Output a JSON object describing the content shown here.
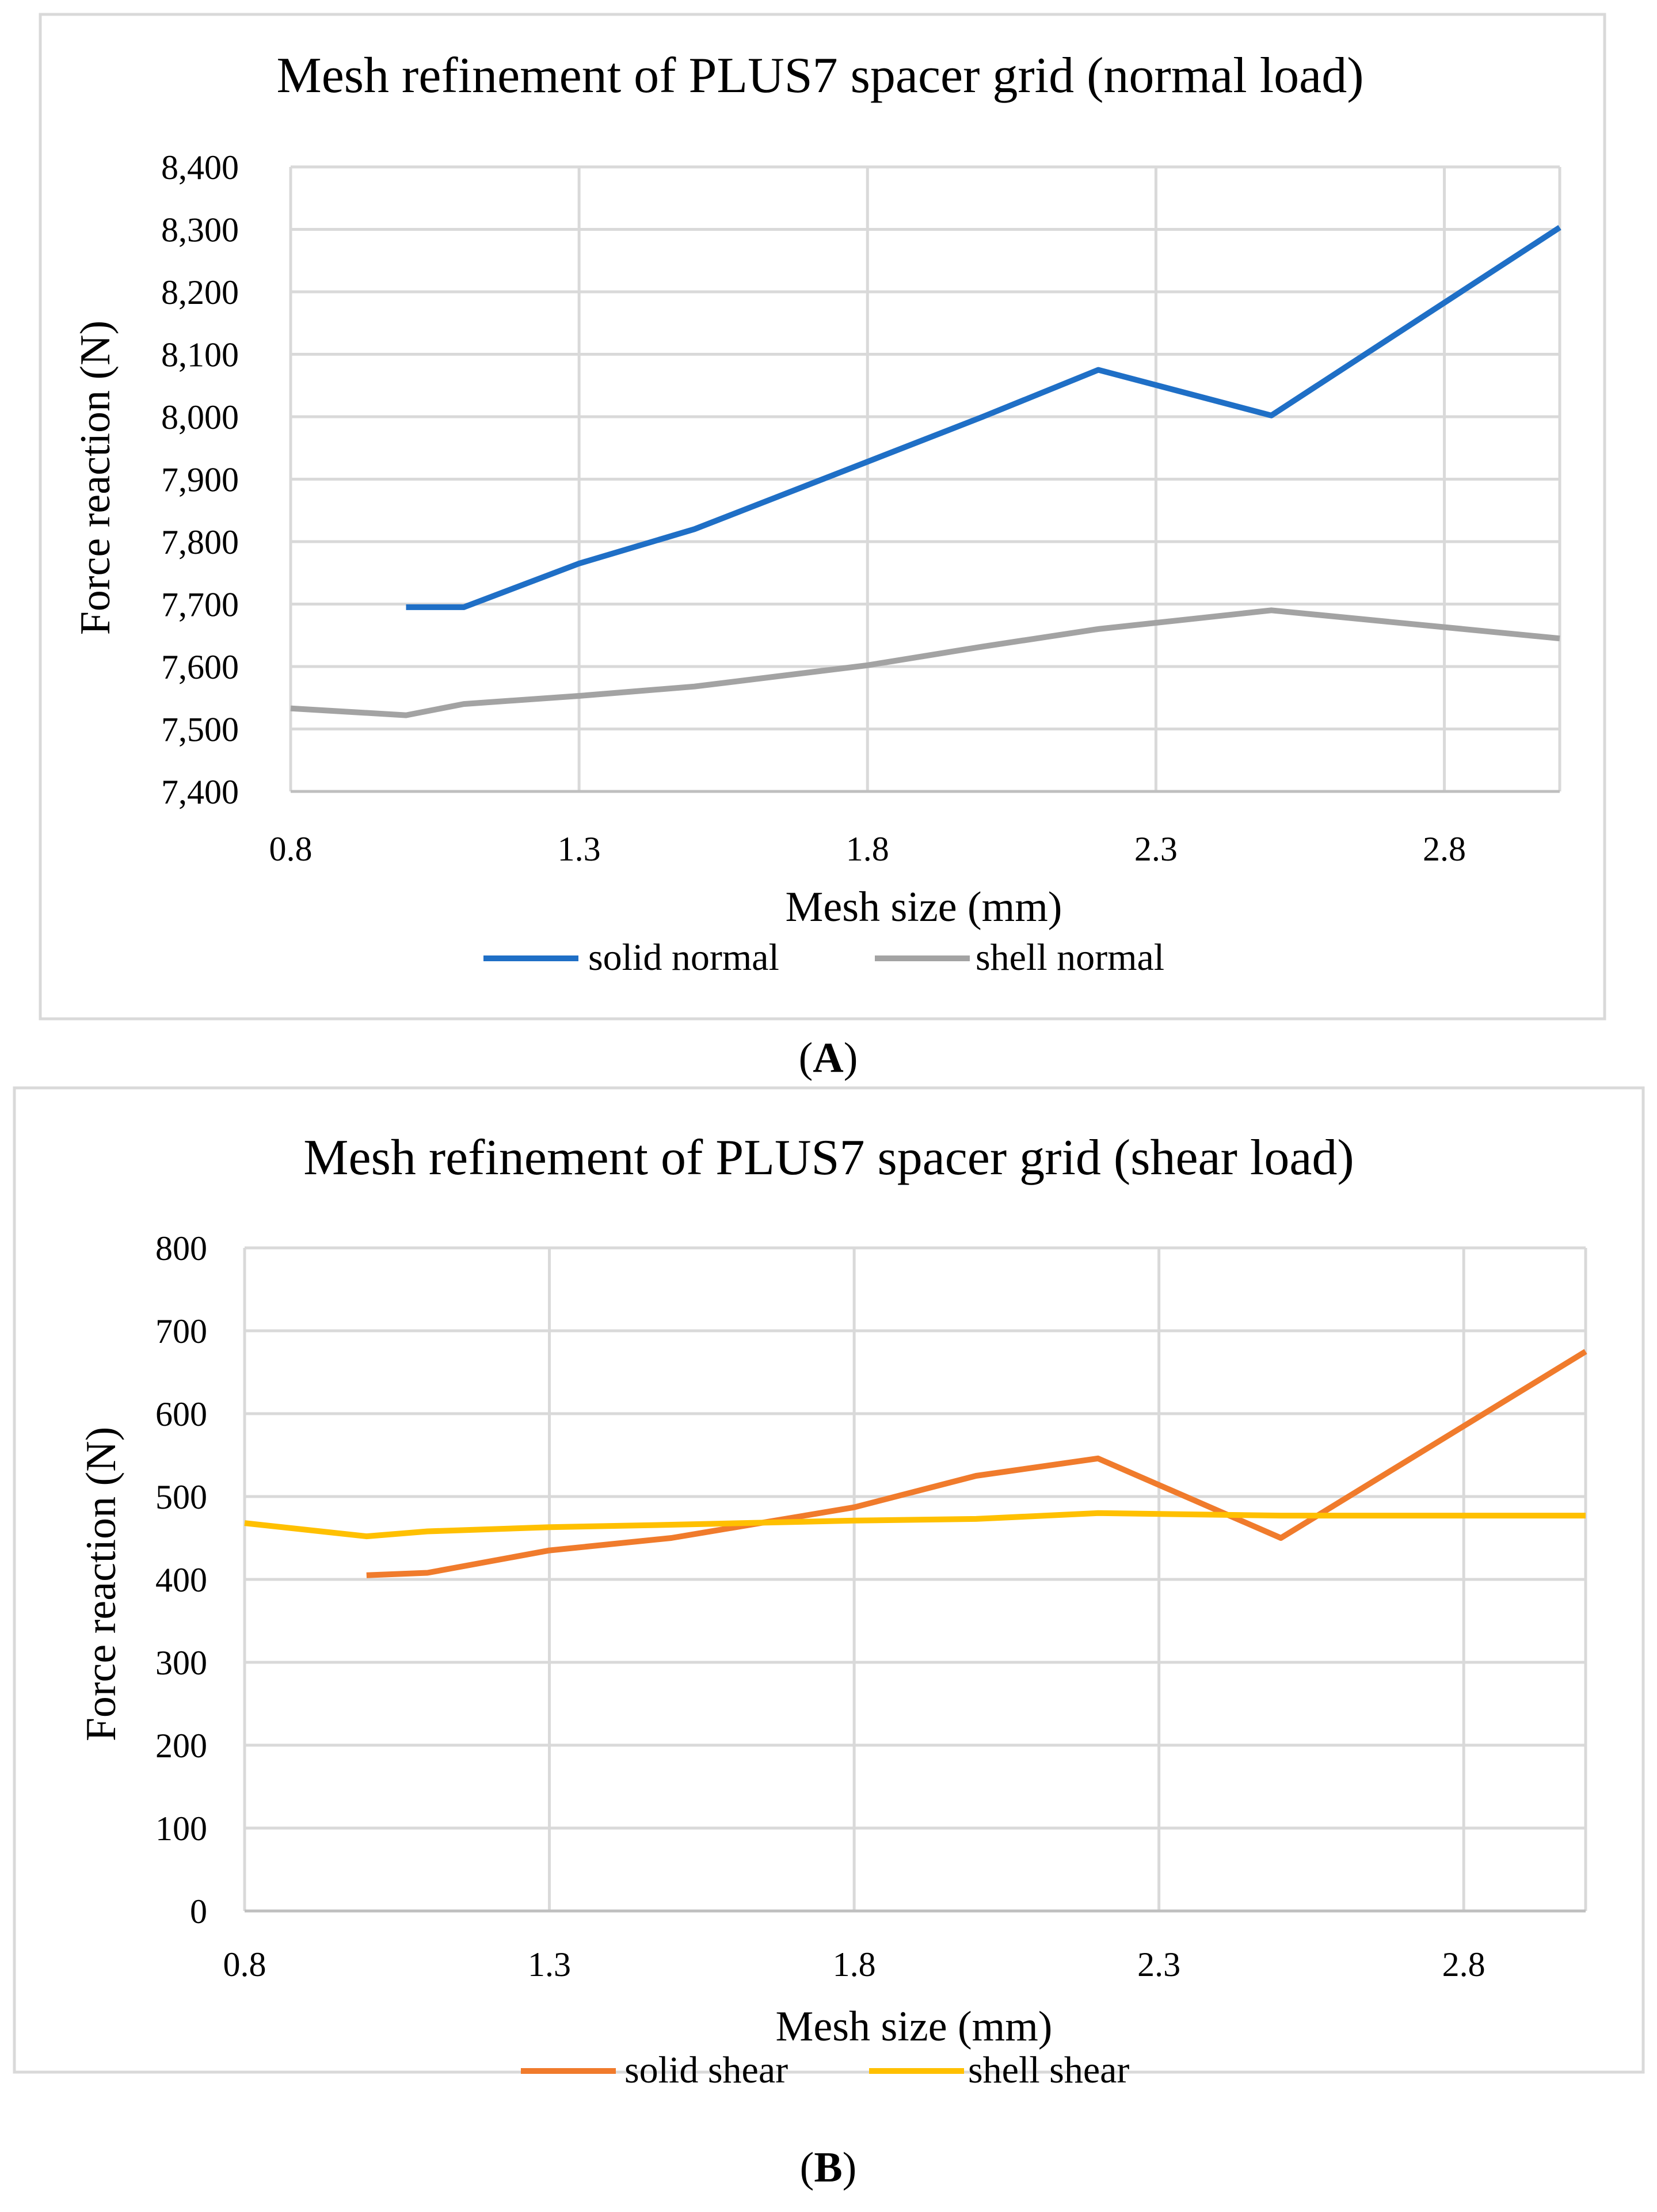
{
  "chart_data": [
    {
      "type": "line",
      "panel_label": "(A)",
      "panel_letter": "A",
      "title": "Mesh refinement of PLUS7 spacer grid (normal load)",
      "xlabel": "Mesh size (mm)",
      "ylabel": "Force reaction (N)",
      "xlim": [
        0.8,
        3.0
      ],
      "ylim": [
        7400,
        8400
      ],
      "xticks": [
        0.8,
        1.3,
        1.8,
        2.3,
        2.8
      ],
      "xtick_labels": [
        "0.8",
        "1.3",
        "1.8",
        "2.3",
        "2.8"
      ],
      "yticks": [
        7400,
        7500,
        7600,
        7700,
        7800,
        7900,
        8000,
        8100,
        8200,
        8300,
        8400
      ],
      "ytick_labels": [
        "7,400",
        "7,500",
        "7,600",
        "7,700",
        "7,800",
        "7,900",
        "8,000",
        "8,100",
        "8,200",
        "8,300",
        "8,400"
      ],
      "grid": "vertical",
      "legend_position": "bottom",
      "series": [
        {
          "name": "solid normal",
          "color": "#1f6fc6",
          "x": [
            1.0,
            1.1,
            1.3,
            1.5,
            2.0,
            2.2,
            2.5,
            3.0
          ],
          "values": [
            7695,
            7695,
            7765,
            7820,
            8000,
            8075,
            8002,
            8303
          ]
        },
        {
          "name": "shell normal",
          "color": "#a3a3a3",
          "x": [
            0.8,
            1.0,
            1.1,
            1.3,
            1.5,
            1.8,
            2.0,
            2.2,
            2.5,
            3.0
          ],
          "values": [
            7533,
            7522,
            7540,
            7553,
            7568,
            7602,
            7632,
            7660,
            7690,
            7645
          ]
        }
      ]
    },
    {
      "type": "line",
      "panel_label": "(B)",
      "panel_letter": "B",
      "title": "Mesh refinement of PLUS7 spacer grid (shear load)",
      "xlabel": "Mesh size (mm)",
      "ylabel": "Force reaction (N)",
      "xlim": [
        0.8,
        3.0
      ],
      "ylim": [
        0,
        800
      ],
      "xticks": [
        0.8,
        1.3,
        1.8,
        2.3,
        2.8
      ],
      "xtick_labels": [
        "0.8",
        "1.3",
        "1.8",
        "2.3",
        "2.8"
      ],
      "yticks": [
        0,
        100,
        200,
        300,
        400,
        500,
        600,
        700,
        800
      ],
      "ytick_labels": [
        "0",
        "100",
        "200",
        "300",
        "400",
        "500",
        "600",
        "700",
        "800"
      ],
      "grid": "both",
      "legend_position": "bottom",
      "series": [
        {
          "name": "solid shear",
          "color": "#f07b2c",
          "x": [
            1.0,
            1.1,
            1.3,
            1.5,
            1.8,
            2.0,
            2.2,
            2.5,
            3.0
          ],
          "values": [
            405,
            408,
            435,
            450,
            487,
            525,
            546,
            450,
            675
          ]
        },
        {
          "name": "shell shear",
          "color": "#ffc000",
          "x": [
            0.8,
            1.0,
            1.1,
            1.3,
            1.5,
            1.8,
            2.0,
            2.2,
            2.5,
            3.0
          ],
          "values": [
            468,
            452,
            458,
            463,
            466,
            471,
            473,
            480,
            477,
            477
          ]
        }
      ]
    }
  ]
}
